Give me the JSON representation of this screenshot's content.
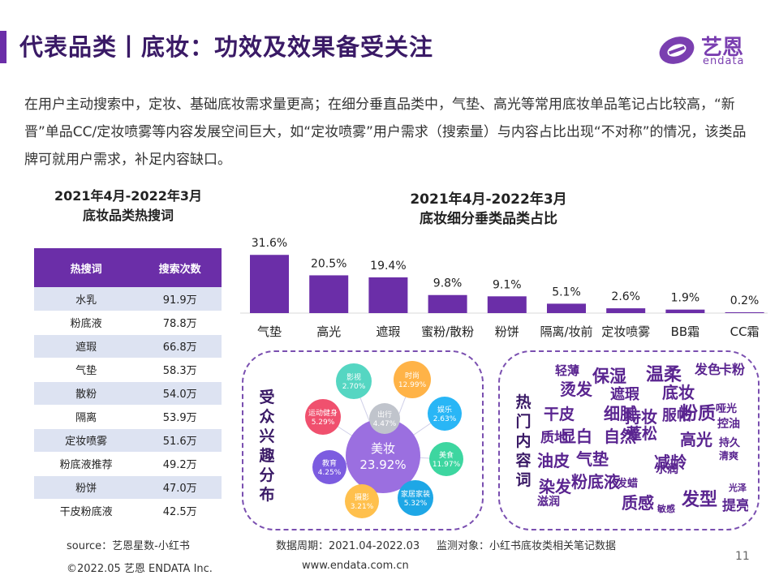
{
  "header": {
    "title": "代表品类丨底妆：功效及效果备受关注",
    "logo_text": "艺恩",
    "logo_sub": "endata"
  },
  "intro": "在用户主动搜索中，定妆、基础底妆需求量更高；在细分垂直品类中，气垫、高光等常用底妆单品笔记占比较高，“新晋”单品CC/定妆喷雾等内容发展空间巨大，如“定妆喷雾”用户需求（搜索量）与内容占比出现“不对称”的情况，该类品牌可就用户需求，补足内容缺口。",
  "left_table": {
    "title_line1": "2021年4月-2022年3月",
    "title_line2": "底妆品类热搜词",
    "headers": [
      "热搜词",
      "搜索次数"
    ],
    "rows": [
      [
        "水乳",
        "91.9万"
      ],
      [
        "粉底液",
        "78.8万"
      ],
      [
        "遮瑕",
        "66.8万"
      ],
      [
        "气垫",
        "58.3万"
      ],
      [
        "散粉",
        "54.0万"
      ],
      [
        "隔离",
        "53.9万"
      ],
      [
        "定妆喷雾",
        "51.6万"
      ],
      [
        "粉底液推荐",
        "49.2万"
      ],
      [
        "粉饼",
        "47.0万"
      ],
      [
        "干皮粉底液",
        "42.5万"
      ]
    ]
  },
  "chart_data": {
    "type": "bar",
    "title": "2021年4月-2022年3月 底妆细分垂类品类占比",
    "title_line1": "2021年4月-2022年3月",
    "title_line2": "底妆细分垂类品类占比",
    "categories": [
      "气垫",
      "高光",
      "遮瑕",
      "蜜粉/散粉",
      "粉饼",
      "隔离/妆前",
      "定妆喷雾",
      "BB霜",
      "CC霜"
    ],
    "values": [
      31.6,
      20.5,
      19.4,
      9.8,
      9.1,
      5.1,
      2.6,
      1.9,
      0.2
    ],
    "value_labels": [
      "31.6%",
      "20.5%",
      "19.4%",
      "9.8%",
      "9.1%",
      "5.1%",
      "2.6%",
      "1.9%",
      "0.2%"
    ],
    "unit": "%",
    "ylim": [
      0,
      35
    ],
    "grid": false,
    "bar_color": "#6b2ea8"
  },
  "interest_panel": {
    "title": "受众兴趣分布",
    "bubbles": [
      {
        "label": "美妆",
        "value": "23.92%",
        "color": "#9b6fe0"
      },
      {
        "label": "出行",
        "value": "4.47%",
        "color": "#c0c4cc"
      },
      {
        "label": "影视",
        "value": "2.70%",
        "color": "#55d6c2"
      },
      {
        "label": "时尚",
        "value": "12.99%",
        "color": "#ffb347"
      },
      {
        "label": "娱乐",
        "value": "2.63%",
        "color": "#29b6f6"
      },
      {
        "label": "美食",
        "value": "11.97%",
        "color": "#3dd6a0"
      },
      {
        "label": "家居家装",
        "value": "5.32%",
        "color": "#1ea7e6"
      },
      {
        "label": "摄影",
        "value": "3.21%",
        "color": "#ffc04d"
      },
      {
        "label": "教育",
        "value": "4.25%",
        "color": "#7c5ce0"
      },
      {
        "label": "运动健身",
        "value": "5.29%",
        "color": "#f0506e"
      }
    ]
  },
  "hot_words_panel": {
    "title": "热门内容词",
    "words": [
      "保湿",
      "温柔",
      "轻薄",
      "发色",
      "卡粉",
      "烫发",
      "底妆",
      "遮瑕",
      "粉质",
      "细腻",
      "干皮",
      "持妆",
      "服帖",
      "自然",
      "蓬松",
      "显白",
      "质地",
      "高光",
      "减龄",
      "气垫",
      "油皮",
      "粉底液",
      "染发",
      "质感",
      "发型",
      "提亮",
      "滋润",
      "水润",
      "哑光",
      "控油",
      "持久",
      "发蜡",
      "清爽",
      "敏感",
      "光泽"
    ]
  },
  "footer": {
    "source": "source：艺恩星数-小红书",
    "period": "数据周期：2021.04-2022.03",
    "target": "监测对象：小红书底妆类相关笔记数据",
    "page_number": "11",
    "copyright": "©2022.05 艺恩 ENDATA Inc.",
    "website": "www.endata.com.cn"
  }
}
